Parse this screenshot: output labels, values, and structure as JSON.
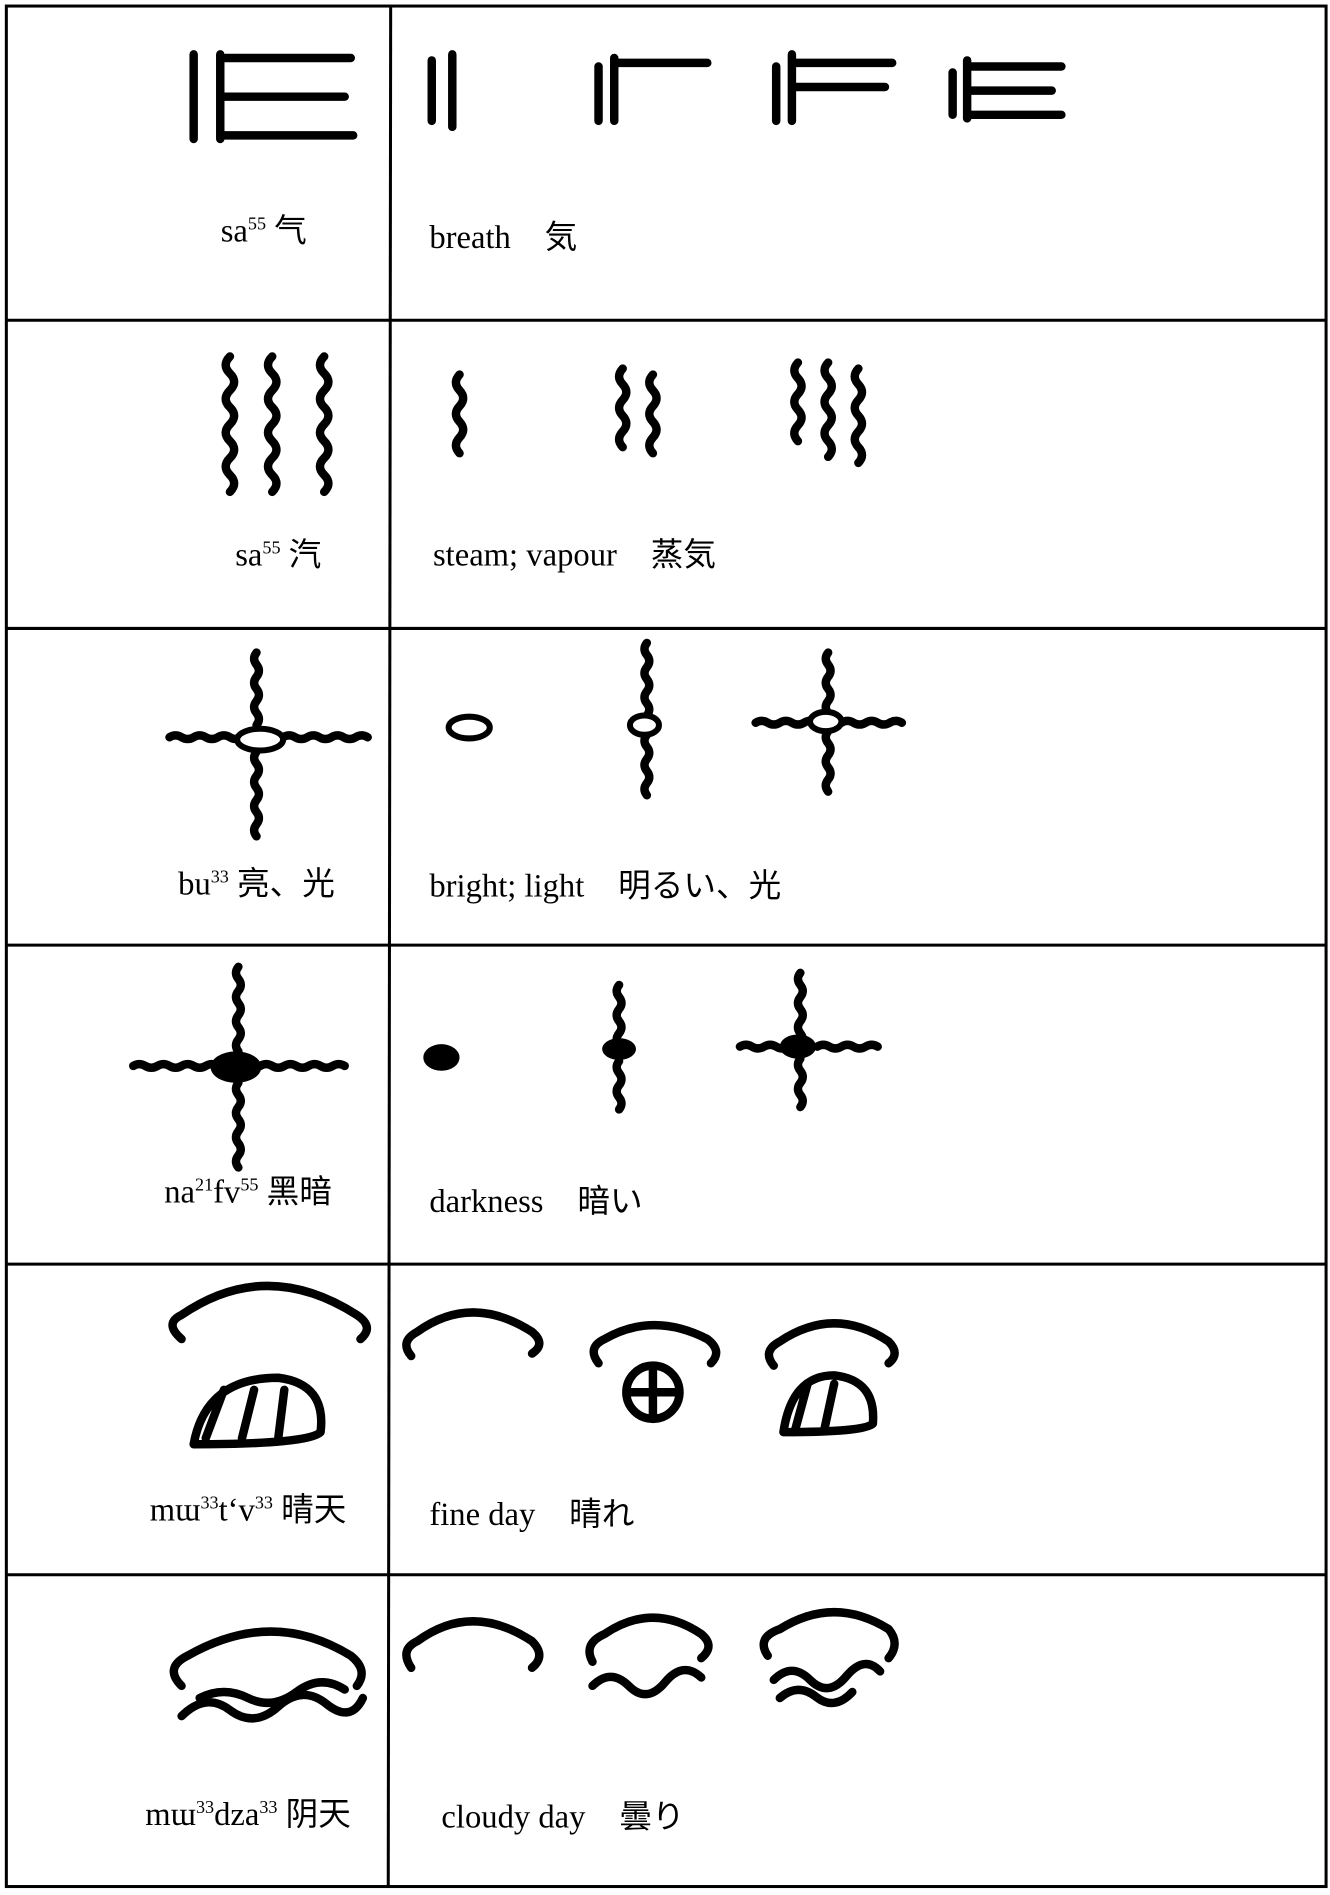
{
  "table": {
    "rows": [
      {
        "label": [
          "sa",
          "55",
          " 气"
        ],
        "gloss": "breath",
        "japanese": "気"
      },
      {
        "label": [
          "sa",
          "55",
          " 汽"
        ],
        "gloss": "steam; vapour",
        "japanese": "蒸気"
      },
      {
        "label": [
          "bu",
          "33",
          " 亮、光"
        ],
        "gloss": "bright; light",
        "japanese": "明るい、光"
      },
      {
        "label": [
          "na",
          "21",
          "fv",
          "55",
          " 黑暗"
        ],
        "gloss": "darkness",
        "japanese": "暗い"
      },
      {
        "label": [
          "mɯ",
          "33",
          "tʻv",
          "33",
          " 晴天"
        ],
        "gloss": "fine day",
        "japanese": "晴れ"
      },
      {
        "label": [
          "mɯ",
          "33",
          "dza",
          "33",
          " 阴天"
        ],
        "gloss": "cloudy day",
        "japanese": "曇り"
      }
    ]
  }
}
